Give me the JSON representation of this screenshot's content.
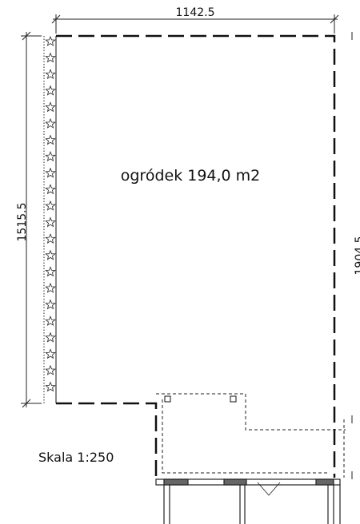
{
  "dimensions": {
    "top": "1142.5",
    "left": "1515.5",
    "right": "1904.5"
  },
  "room": {
    "label": "ogródek 194,0 m2"
  },
  "scale": "Skala 1:250"
}
